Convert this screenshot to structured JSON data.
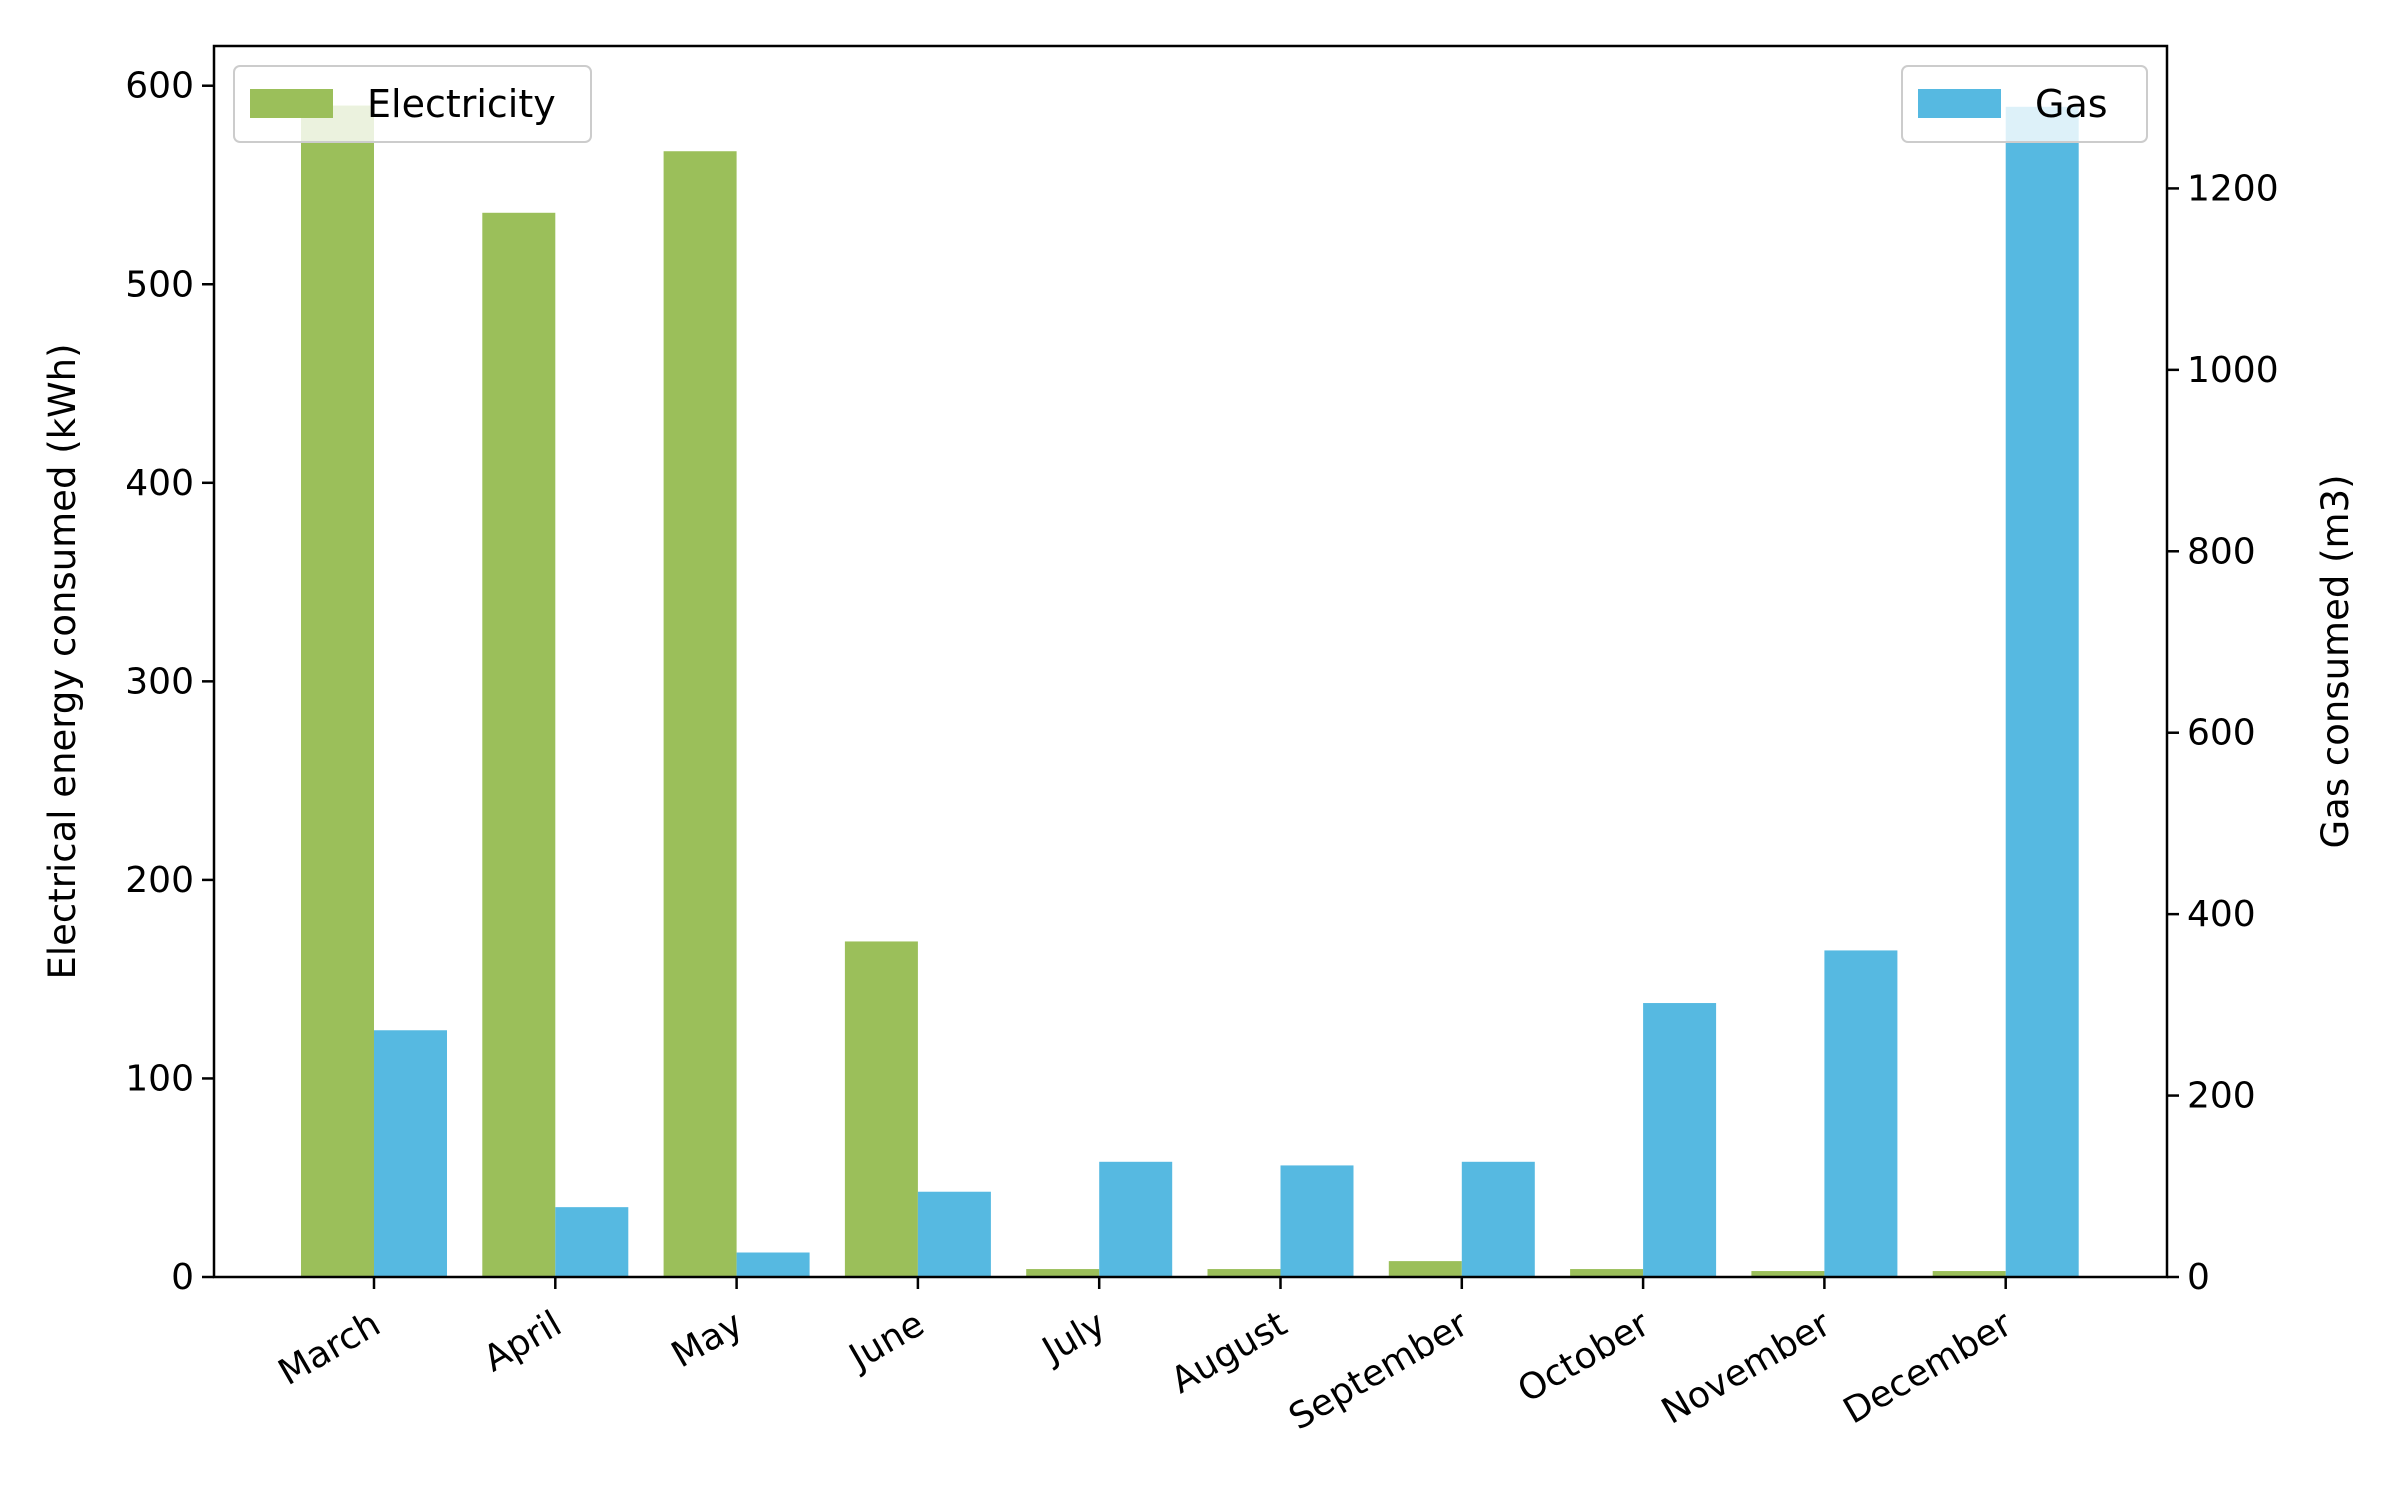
{
  "chart_data": {
    "type": "bar",
    "categories": [
      "March",
      "April",
      "May",
      "June",
      "July",
      "August",
      "September",
      "October",
      "November",
      "December"
    ],
    "series": [
      {
        "name": "Electricity",
        "axis": "left",
        "color": "#9bbf5a",
        "values": [
          590,
          536,
          567,
          169,
          4,
          4,
          8,
          4,
          3,
          3
        ]
      },
      {
        "name": "Gas",
        "axis": "right",
        "color": "#56b9e1",
        "values": [
          272,
          77,
          27,
          94,
          127,
          123,
          127,
          302,
          360,
          1290
        ]
      }
    ],
    "ylabel": "Electrical energy consumed (kWh)",
    "ylabel_right": "Gas consumed (m3)",
    "ylim": [
      0,
      620
    ],
    "ylim_right": [
      0,
      1357
    ],
    "yticks": [
      0,
      100,
      200,
      300,
      400,
      500,
      600
    ],
    "yticks_right": [
      0,
      200,
      400,
      600,
      800,
      1000,
      1200
    ],
    "legend_left": "top-left",
    "legend_right": "top-right",
    "grid": false
  }
}
